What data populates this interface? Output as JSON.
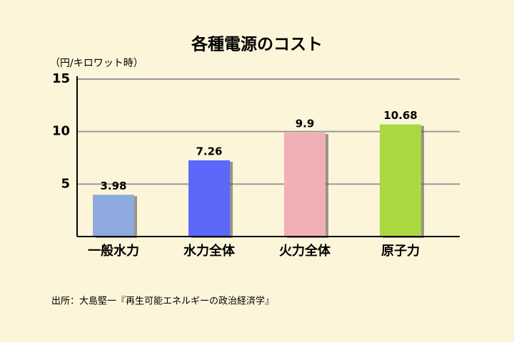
{
  "chart_data": {
    "type": "bar",
    "title": "各種電源のコスト",
    "y_label": "（円/キロワット時）",
    "categories": [
      "一般水力",
      "水力全体",
      "火力全体",
      "原子力"
    ],
    "values": [
      3.98,
      7.26,
      9.9,
      10.68
    ],
    "colors": [
      "#8eaade",
      "#5c68fa",
      "#f0b0b5",
      "#a9d83f"
    ],
    "ylim": [
      0,
      15
    ],
    "yticks": [
      5,
      10,
      15
    ],
    "grid": true,
    "source": "出所：大島堅一『再生可能エネルギーの政治経済学』"
  }
}
